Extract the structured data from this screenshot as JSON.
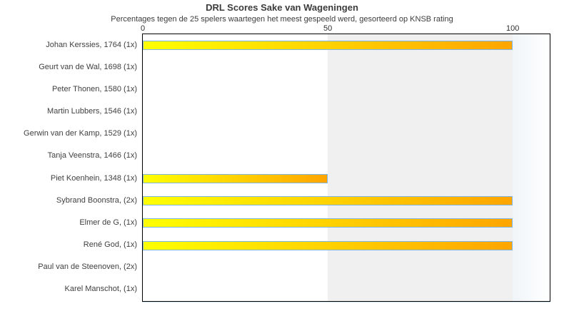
{
  "chart_data": {
    "type": "bar",
    "orientation": "horizontal",
    "title": "DRL Scores Sake van Wageningen",
    "subtitle": "Percentages tegen de 25 spelers waartegen het meest gespeeld werd, gesorteerd op KNSB rating",
    "categories": [
      "Johan Kerssies, 1764 (1x)",
      "Geurt van de Wal, 1698 (1x)",
      "Peter Thonen, 1580 (1x)",
      "Martin Lubbers, 1546 (1x)",
      "Gerwin van der Kamp, 1529 (1x)",
      "Tanja Veenstra, 1466 (1x)",
      "Piet Koenhein, 1348 (1x)",
      "Sybrand Boonstra,  (2x)",
      "Elmer de G,  (1x)",
      "René God,  (1x)",
      "Paul van de Steenoven,  (2x)",
      "Karel Manschot,  (1x)"
    ],
    "values": [
      100,
      0,
      0,
      0,
      0,
      0,
      50,
      100,
      100,
      100,
      0,
      0
    ],
    "xlabel": "",
    "ylabel": "",
    "xlim": [
      0,
      110
    ],
    "x_ticks": [
      0,
      50,
      100
    ],
    "highlight_band": [
      50,
      100
    ],
    "fade_band": [
      100,
      110
    ],
    "grid": false,
    "legend": null,
    "colors": {
      "bar_gradient_start": "#ffff00",
      "bar_gradient_end": "#ffa500",
      "bar_border": "#7db4e0",
      "band_fill": "#f0f0f0",
      "fade_start": "#f0f5f9",
      "fade_end": "#ffffff",
      "plot_border": "#000000",
      "under_line": "#b9d7e2",
      "text": "#3c3c3c"
    }
  }
}
